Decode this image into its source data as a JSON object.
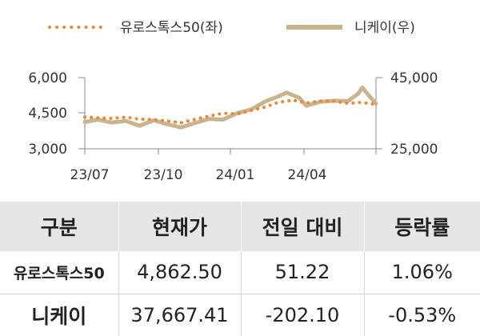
{
  "chart_data": {
    "type": "line",
    "legend": {
      "placement": "top",
      "entries": [
        "유로스톡스50(좌)",
        "니케이(우)"
      ]
    },
    "x_ticks": [
      "23/07",
      "23/10",
      "24/01",
      "24/04"
    ],
    "y_left": {
      "ticks": [
        "6,000",
        "4,500",
        "3,000"
      ],
      "range": [
        3000,
        6000
      ]
    },
    "y_right": {
      "ticks": [
        "45,000",
        "25,000"
      ],
      "range": [
        25000,
        45000
      ]
    },
    "x_range": [
      "2023-06-01",
      "2024-07-31"
    ],
    "series": [
      {
        "name": "유로스톡스50(좌)",
        "axis": "left",
        "style": "dotted",
        "color": "#e8893a",
        "points": [
          [
            "2023-06-01",
            4340
          ],
          [
            "2023-06-20",
            4300
          ],
          [
            "2023-07-10",
            4280
          ],
          [
            "2023-07-31",
            4330
          ],
          [
            "2023-08-20",
            4250
          ],
          [
            "2023-09-10",
            4230
          ],
          [
            "2023-09-30",
            4170
          ],
          [
            "2023-10-20",
            4100
          ],
          [
            "2023-11-10",
            4250
          ],
          [
            "2023-11-30",
            4380
          ],
          [
            "2023-12-20",
            4500
          ],
          [
            "2024-01-10",
            4470
          ],
          [
            "2024-01-31",
            4620
          ],
          [
            "2024-02-20",
            4760
          ],
          [
            "2024-03-10",
            4960
          ],
          [
            "2024-03-31",
            5050
          ],
          [
            "2024-04-20",
            4930
          ],
          [
            "2024-05-10",
            5010
          ],
          [
            "2024-05-31",
            5000
          ],
          [
            "2024-06-20",
            4910
          ],
          [
            "2024-07-10",
            4960
          ],
          [
            "2024-07-31",
            4862.5
          ]
        ]
      },
      {
        "name": "니케이(우)",
        "axis": "right",
        "style": "solid",
        "color": "#c8b48e",
        "points": [
          [
            "2023-06-01",
            32500
          ],
          [
            "2023-06-20",
            33200
          ],
          [
            "2023-07-10",
            32400
          ],
          [
            "2023-07-31",
            32800
          ],
          [
            "2023-08-20",
            31500
          ],
          [
            "2023-09-10",
            33000
          ],
          [
            "2023-09-30",
            31900
          ],
          [
            "2023-10-20",
            31000
          ],
          [
            "2023-11-10",
            32300
          ],
          [
            "2023-11-30",
            33400
          ],
          [
            "2023-12-20",
            33200
          ],
          [
            "2024-01-10",
            35000
          ],
          [
            "2024-01-31",
            36100
          ],
          [
            "2024-02-20",
            38300
          ],
          [
            "2024-03-10",
            39700
          ],
          [
            "2024-03-22",
            40800
          ],
          [
            "2024-04-10",
            39300
          ],
          [
            "2024-04-20",
            37100
          ],
          [
            "2024-05-10",
            38200
          ],
          [
            "2024-05-31",
            38500
          ],
          [
            "2024-06-20",
            38400
          ],
          [
            "2024-07-05",
            40500
          ],
          [
            "2024-07-11",
            42200
          ],
          [
            "2024-07-20",
            40100
          ],
          [
            "2024-07-31",
            37667.41
          ]
        ]
      }
    ]
  },
  "table": {
    "headers": [
      "구분",
      "현재가",
      "전일 대비",
      "등락률"
    ],
    "rows": [
      [
        "유로스톡스50",
        "4,862.50",
        "51.22",
        "1.06%"
      ],
      [
        "니케이",
        "37,667.41",
        "-202.10",
        "-0.53%"
      ]
    ]
  }
}
